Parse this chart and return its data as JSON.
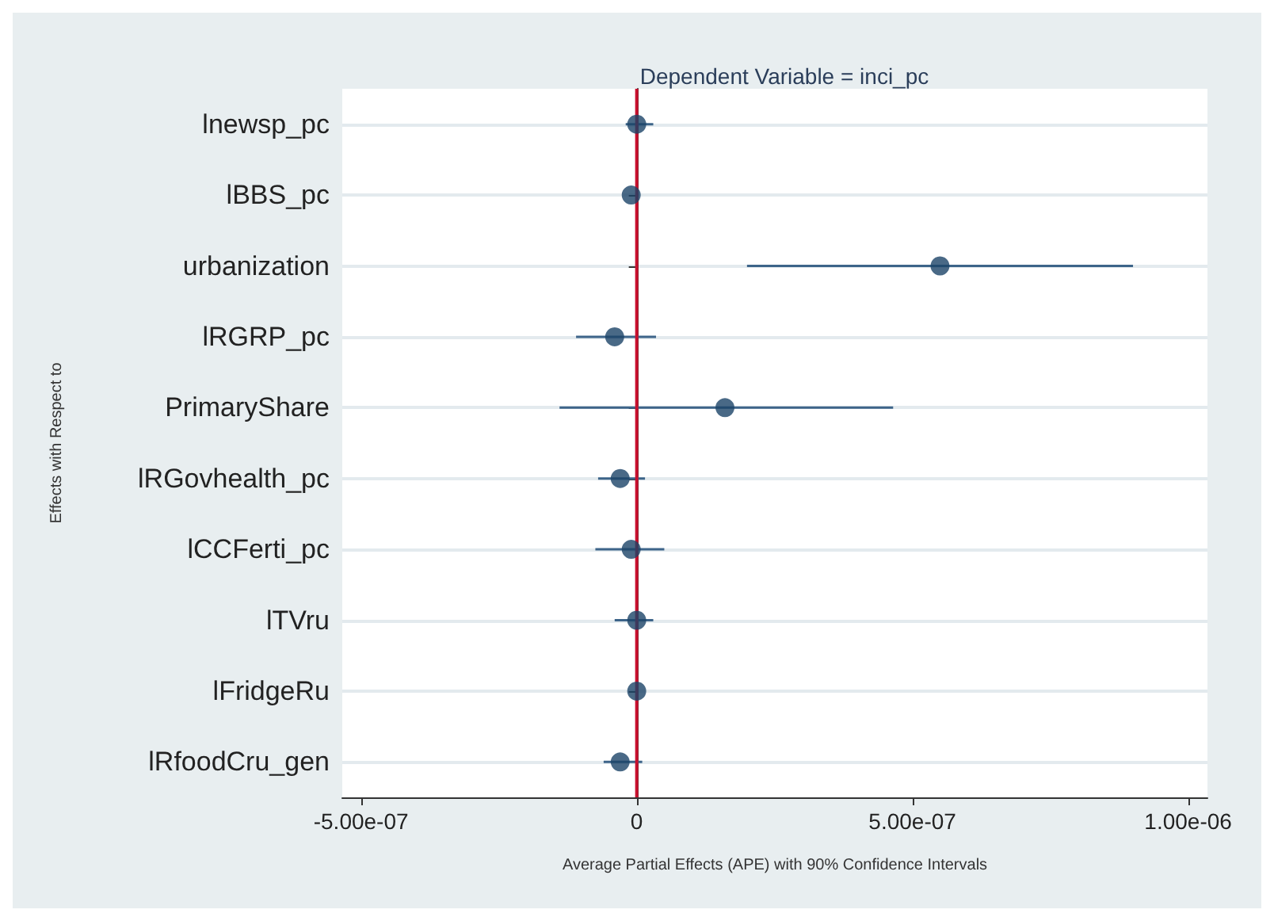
{
  "chart_data": {
    "type": "scatter",
    "title": "Dependent Variable = inci_pc",
    "xlabel": "Average Partial Effects (APE) with 90% Confidence Intervals",
    "ylabel": "Effects with Respect to",
    "orientation": "horizontal",
    "categories": [
      "lnewsp_pc",
      "lBBS_pc",
      "urbanization",
      "lRGRP_pc",
      "PrimaryShare",
      "lRGovhealth_pc",
      "lCCFerti_pc",
      "lTVru",
      "lFridgeRu",
      "lRfoodCru_gen"
    ],
    "values": [
      0,
      -1e-08,
      5.5e-07,
      -4e-08,
      1.6e-07,
      -3e-08,
      -1e-08,
      0,
      0,
      -3e-08
    ],
    "errors": [
      [
        -2e-08,
        3e-08
      ],
      null,
      [
        2e-07,
        9e-07
      ],
      [
        -1.1e-07,
        3.5e-08
      ],
      [
        -1.4e-07,
        4.65e-07
      ],
      [
        -7e-08,
        1.5e-08
      ],
      [
        -7.5e-08,
        5e-08
      ],
      [
        -4e-08,
        3e-08
      ],
      null,
      [
        -6e-08,
        1e-08
      ]
    ],
    "color": "#1b4468",
    "marker": "circle",
    "xlim": [
      -5.34e-07,
      1.035e-06
    ],
    "xticks": [
      {
        "value": -5e-07,
        "label": "-5.00e-07"
      },
      0,
      {
        "value": 5e-07,
        "label": "5.00e-07"
      },
      {
        "value": 1e-06,
        "label": "1.00e-06"
      }
    ],
    "ref_lines": [
      {
        "axis": "x",
        "value": 0,
        "color": "#c8102e"
      }
    ],
    "grid": "y"
  }
}
